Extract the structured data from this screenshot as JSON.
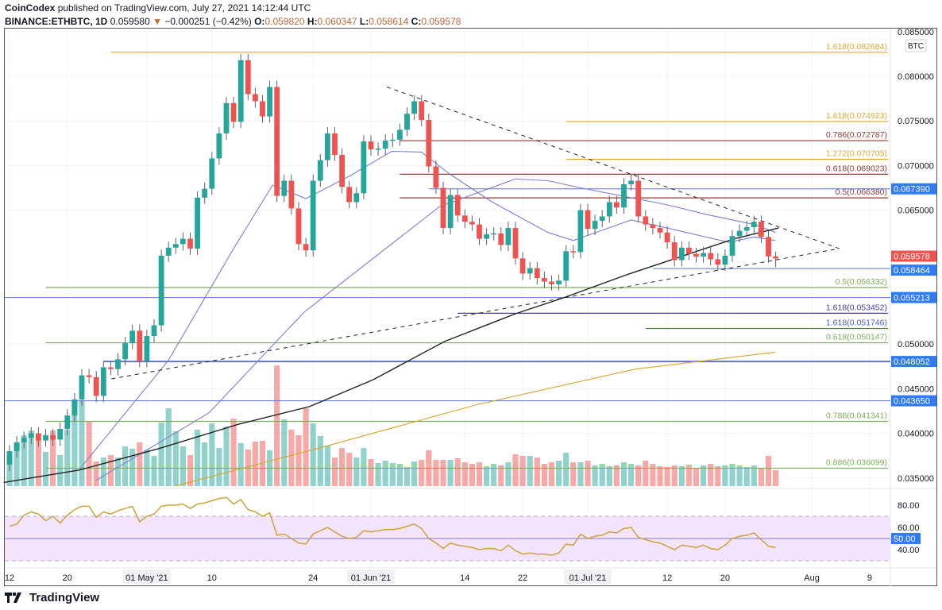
{
  "header": {
    "author": "CoinCodex",
    "published": "published on TradingView.com, July 27, 2021 14:12:44 UTC",
    "symbol": "BINANCE:ETHBTC, 1D",
    "last": "0.059580",
    "change": "−0.000251 (−0.42%)",
    "o_label": "O:",
    "o": "0.059820",
    "h_label": "H:",
    "h": "0.060347",
    "l_label": "L:",
    "l": "0.058614",
    "c_label": "C:",
    "c": "0.059578"
  },
  "footer": {
    "brand": "TradingView"
  },
  "colors": {
    "up": "#26a69a",
    "down": "#ef5350",
    "badge_blue": "#2f7cf6",
    "badge_red": "#ef5350",
    "rsi": "#c9a33c",
    "rsi_band": "#f3e3fb"
  },
  "chart_data": {
    "type": "candlestick",
    "title": "BINANCE:ETHBTC, 1D",
    "x_start": "2021-04-12",
    "first_open": 0.0365,
    "close": [
      0.038,
      0.039,
      0.0395,
      0.04,
      0.0392,
      0.0398,
      0.0393,
      0.0405,
      0.042,
      0.0438,
      0.0465,
      0.0463,
      0.0442,
      0.0474,
      0.0472,
      0.0483,
      0.0501,
      0.0515,
      0.0481,
      0.0509,
      0.0521,
      0.0599,
      0.0608,
      0.0612,
      0.0618,
      0.0607,
      0.0664,
      0.0674,
      0.0708,
      0.0736,
      0.077,
      0.0749,
      0.0818,
      0.078,
      0.0772,
      0.0755,
      0.0788,
      0.0666,
      0.0683,
      0.0652,
      0.0612,
      0.0605,
      0.0683,
      0.0706,
      0.0736,
      0.0712,
      0.0676,
      0.0659,
      0.0669,
      0.0727,
      0.0718,
      0.0719,
      0.0728,
      0.0729,
      0.074,
      0.0758,
      0.0772,
      0.0751,
      0.0699,
      0.0675,
      0.063,
      0.0667,
      0.0644,
      0.0637,
      0.0634,
      0.0618,
      0.0623,
      0.0624,
      0.0611,
      0.063,
      0.0596,
      0.0579,
      0.0585,
      0.0574,
      0.057,
      0.0567,
      0.0571,
      0.0604,
      0.0603,
      0.065,
      0.0629,
      0.0638,
      0.0643,
      0.0659,
      0.0653,
      0.0679,
      0.0683,
      0.0643,
      0.0634,
      0.063,
      0.0625,
      0.0614,
      0.0594,
      0.0608,
      0.0601,
      0.0598,
      0.0602,
      0.0595,
      0.0589,
      0.0599,
      0.0621,
      0.0627,
      0.0631,
      0.0637,
      0.062,
      0.05982,
      0.059578
    ],
    "volume_rel": [
      37,
      54,
      64,
      70,
      59,
      43,
      70,
      39,
      71,
      107,
      107,
      82,
      31,
      36,
      39,
      36,
      50,
      47,
      55,
      46,
      38,
      80,
      98,
      69,
      50,
      39,
      71,
      55,
      79,
      48,
      75,
      85,
      54,
      46,
      56,
      57,
      45,
      152,
      84,
      71,
      64,
      98,
      79,
      63,
      51,
      36,
      48,
      42,
      36,
      48,
      34,
      29,
      32,
      29,
      28,
      24,
      31,
      33,
      45,
      33,
      33,
      33,
      35,
      30,
      28,
      30,
      25,
      28,
      26,
      30,
      40,
      38,
      38,
      36,
      28,
      30,
      32,
      42,
      30,
      30,
      32,
      26,
      28,
      25,
      26,
      30,
      28,
      26,
      32,
      28,
      25,
      24,
      26,
      25,
      27,
      22,
      26,
      28,
      25,
      26,
      28,
      26,
      24,
      26,
      22,
      38,
      20
    ],
    "rsi": [
      61,
      63,
      71,
      74,
      72,
      66,
      70,
      64,
      71,
      76,
      79,
      79,
      69,
      74,
      72,
      75,
      77,
      79,
      65,
      70,
      72,
      79,
      80,
      80,
      81,
      77,
      81,
      82,
      84,
      86,
      87,
      81,
      85,
      76,
      74,
      70,
      73,
      53,
      54,
      50,
      46,
      45,
      54,
      57,
      60,
      56,
      52,
      50,
      51,
      57,
      56,
      57,
      58,
      58,
      59,
      61,
      63,
      59,
      50,
      46,
      41,
      46,
      44,
      43,
      42,
      40,
      41,
      41,
      39,
      44,
      39,
      36,
      37,
      36,
      36,
      35,
      37,
      45,
      44,
      54,
      50,
      52,
      53,
      56,
      55,
      59,
      60,
      51,
      49,
      47,
      46,
      43,
      40,
      44,
      43,
      42,
      44,
      41,
      40,
      44,
      50,
      52,
      53,
      55,
      49,
      43,
      42
    ],
    "moving_averages": [
      {
        "name": "ma-fast",
        "color": "#7b7fd0",
        "points": [
          [
            9.7,
            0.036
          ],
          [
            22,
            0.0482
          ],
          [
            31,
            0.0607
          ],
          [
            36.4,
            0.0678
          ],
          [
            41,
            0.0663
          ],
          [
            47,
            0.0688
          ],
          [
            52.9,
            0.0716
          ],
          [
            57,
            0.0715
          ],
          [
            60.8,
            0.0691
          ],
          [
            66.8,
            0.0659
          ],
          [
            74.5,
            0.0625
          ],
          [
            78,
            0.0616
          ],
          [
            86,
            0.0639
          ],
          [
            91,
            0.063
          ],
          [
            99.5,
            0.0614
          ],
          [
            103,
            0.062
          ],
          [
            106,
            0.0616
          ]
        ]
      },
      {
        "name": "ma-slow",
        "color": "#7b7fd0",
        "points": [
          [
            11.9,
            0.0347
          ],
          [
            27.6,
            0.0423
          ],
          [
            38.2,
            0.0514
          ],
          [
            40.8,
            0.0536
          ],
          [
            59.5,
            0.0654
          ],
          [
            70,
            0.0685
          ],
          [
            74.5,
            0.0683
          ],
          [
            79,
            0.0675
          ],
          [
            91,
            0.0656
          ],
          [
            96.5,
            0.0645
          ],
          [
            103,
            0.0634
          ],
          [
            106,
            0.0625
          ]
        ]
      },
      {
        "name": "ma-100",
        "color": "#222222",
        "points": [
          [
            -0.8,
            0.0345
          ],
          [
            9.7,
            0.0359
          ],
          [
            20.7,
            0.0383
          ],
          [
            31.6,
            0.041
          ],
          [
            41.5,
            0.043
          ],
          [
            50.3,
            0.046
          ],
          [
            60.2,
            0.0503
          ],
          [
            70,
            0.0534
          ],
          [
            76.7,
            0.0552
          ],
          [
            85.5,
            0.0578
          ],
          [
            91.8,
            0.0595
          ],
          [
            100.3,
            0.0618
          ],
          [
            106.4,
            0.063
          ]
        ]
      },
      {
        "name": "ma-200",
        "color": "#d4a62a",
        "points": [
          [
            22.9,
            0.0341
          ],
          [
            42.6,
            0.0383
          ],
          [
            64.6,
            0.0432
          ],
          [
            86.6,
            0.0472
          ],
          [
            106,
            0.0491
          ]
        ]
      }
    ],
    "trendlines": [
      {
        "name": "upper-trendline",
        "from": [
          52.2,
          0.0788
        ],
        "to": [
          114.8,
          0.0607
        ]
      },
      {
        "name": "lower-trendline",
        "from": [
          14.1,
          0.0461
        ],
        "to": [
          114.8,
          0.0607
        ]
      }
    ],
    "levels": [
      {
        "label": "1.618(0.082684)",
        "value": 0.082684,
        "color": "#e0a82e",
        "from_day": 14
      },
      {
        "label": "1.618(0.074923)",
        "value": 0.074923,
        "color": "#e0a82e",
        "from_day": 77
      },
      {
        "label": "0.786(0.072787)",
        "value": 0.072787,
        "color": "#8d3b33",
        "from_day": 54
      },
      {
        "label": "1.272(0.070705)",
        "value": 0.070705,
        "color": "#e0a82e",
        "from_day": 77
      },
      {
        "label": "0.618(0.069023)",
        "value": 0.069023,
        "color": "#8d3b33",
        "from_day": 54
      },
      {
        "label": "0.5(0.066380)",
        "value": 0.06638,
        "color": "#8d3b33",
        "from_day": 54
      },
      {
        "label": "0.5(0.056332)",
        "value": 0.056332,
        "color": "#7cae5a",
        "from_day": 5
      },
      {
        "label": "1.618(0.053452)",
        "value": 0.053452,
        "color": "#4a3a9a",
        "from_day": 62
      },
      {
        "label": "1.618(0.051746)",
        "value": 0.051746,
        "color": "#4a5ac8",
        "from_day": 88
      },
      {
        "label": "0.618(0.050147)",
        "value": 0.050147,
        "color": "#7cae5a",
        "from_day": 5
      },
      {
        "label": "0.786(0.041341)",
        "value": 0.041341,
        "color": "#7cae5a",
        "from_day": 5
      },
      {
        "label": "0.886(0.036099)",
        "value": 0.036099,
        "color": "#7cae5a",
        "from_day": 5
      }
    ],
    "support_lines": [
      {
        "label": "0.067390",
        "value": 0.06739,
        "from_day": 58,
        "badge": "blue"
      },
      {
        "label": "0.058464",
        "value": 0.058464,
        "from_day": 89,
        "badge": "blue"
      },
      {
        "label": "0.055213",
        "value": 0.055213,
        "from_day": -1,
        "badge": "blue"
      },
      {
        "label": "0.048052",
        "value": 0.048052,
        "from_day": 13,
        "badge": "blue"
      },
      {
        "label": "0.043650",
        "value": 0.04365,
        "from_day": -1,
        "badge": "blue"
      }
    ],
    "last_price": {
      "label": "0.059578",
      "value": 0.059578,
      "badge": "red"
    },
    "y_ticks": [
      "0.085000",
      "0.080000",
      "0.075000",
      "0.070000",
      "0.065000",
      "0.050000",
      "0.045000",
      "0.040000",
      "0.035000"
    ],
    "y_tick_values": [
      0.085,
      0.08,
      0.075,
      0.07,
      0.065,
      0.05,
      0.045,
      0.04,
      0.035
    ],
    "currency_badge": "BTC",
    "rsi_ticks": [
      "80.00",
      "60.00",
      "40.00"
    ],
    "rsi_tick_values": [
      80,
      60,
      40
    ],
    "rsi_mid_badge": "50.00",
    "rsi_band": [
      30,
      70
    ],
    "x_ticks": [
      {
        "label": "12",
        "day": 0
      },
      {
        "label": "20",
        "day": 8
      },
      {
        "label": "01 May '21",
        "day": 19
      },
      {
        "label": "10",
        "day": 28
      },
      {
        "label": "24",
        "day": 42
      },
      {
        "label": "01 Jun '21",
        "day": 50
      },
      {
        "label": "14",
        "day": 63
      },
      {
        "label": "22",
        "day": 71
      },
      {
        "label": "01 Jul '21",
        "day": 80
      },
      {
        "label": "12",
        "day": 91
      },
      {
        "label": "20",
        "day": 99
      },
      {
        "label": "Aug",
        "day": 111
      },
      {
        "label": "9",
        "day": 119
      }
    ]
  }
}
